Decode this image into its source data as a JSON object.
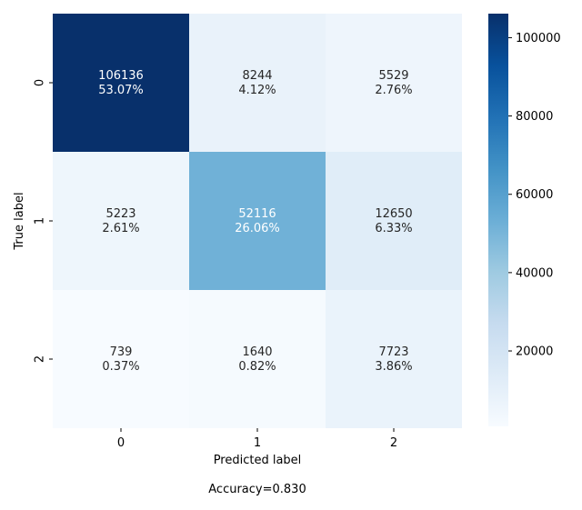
{
  "chart_data": {
    "type": "heatmap",
    "title": "",
    "xlabel": "Predicted label",
    "ylabel": "True label",
    "x_categories": [
      "0",
      "1",
      "2"
    ],
    "y_categories": [
      "0",
      "1",
      "2"
    ],
    "values": [
      [
        106136,
        8244,
        5529
      ],
      [
        5223,
        52116,
        12650
      ],
      [
        739,
        1640,
        7723
      ]
    ],
    "percent_labels": [
      [
        "53.07%",
        "4.12%",
        "2.76%"
      ],
      [
        "2.61%",
        "26.06%",
        "6.33%"
      ],
      [
        "0.37%",
        "0.82%",
        "3.86%"
      ]
    ],
    "colormap": "Blues",
    "colorbar": {
      "range": [
        739,
        106136
      ],
      "ticks": [
        20000,
        40000,
        60000,
        80000,
        100000
      ],
      "tick_labels": [
        "20000",
        "40000",
        "60000",
        "80000",
        "100000"
      ]
    },
    "footer": "Accuracy=0.830"
  }
}
